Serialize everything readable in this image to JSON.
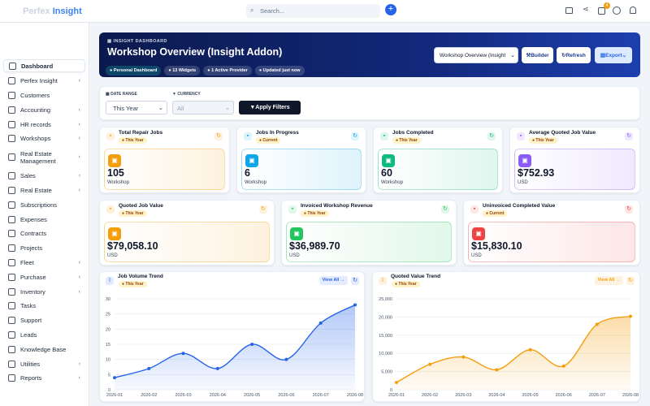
{
  "topbar": {
    "brand_1": "Perfex",
    "brand_2": "Insight",
    "search": "Search...",
    "badge": "4"
  },
  "sidebar": {
    "items": [
      "Dashboard",
      "Perfex Insight",
      "Customers",
      "Accounting",
      "HR records",
      "Workshops",
      "Real Estate Management",
      "Sales",
      "Real Estate",
      "Subscriptions",
      "Expenses",
      "Contracts",
      "Projects",
      "Fleet",
      "Purchase",
      "Inventory",
      "Tasks",
      "Support",
      "Leads",
      "Knowledge Base",
      "Utilities",
      "Reports"
    ]
  },
  "header": {
    "eyebrow": "INSIGHT DASHBOARD",
    "title": "Workshop Overview (Insight Addon)",
    "chips": [
      "Personal Dashboard",
      "13 Widgets",
      "1 Active Provider",
      "Updated just now"
    ],
    "select": "Workshop Overview (Insight",
    "buttons": [
      "Builder",
      "Refresh",
      "Export"
    ]
  },
  "filters": {
    "date_label": "DATE RANGE",
    "date_value": "This Year",
    "currency_label": "CURRENCY",
    "currency_value": "All",
    "apply": "Apply Filters"
  },
  "kpis": [
    {
      "title": "Total Repair Jobs",
      "tag": "This Year",
      "value": "105",
      "unit": "Workshop",
      "color": "#f59e0b"
    },
    {
      "title": "Jobs In Progress",
      "tag": "Current",
      "value": "6",
      "unit": "Workshop",
      "color": "#0ea5e9"
    },
    {
      "title": "Jobs Completed",
      "tag": "This Year",
      "value": "60",
      "unit": "Workshop",
      "color": "#10b981"
    },
    {
      "title": "Average Quoted Job Value",
      "tag": "This Year",
      "value": "$752.93",
      "unit": "USD",
      "color": "#8b5cf6"
    },
    {
      "title": "Quoted Job Value",
      "tag": "This Year",
      "value": "$79,058.10",
      "unit": "USD",
      "color": "#f59e0b"
    },
    {
      "title": "Invoiced Workshop Revenue",
      "tag": "This Year",
      "value": "$36,989.70",
      "unit": "USD",
      "color": "#22c55e"
    },
    {
      "title": "Uninvoiced Completed Value",
      "tag": "Current",
      "value": "$15,830.10",
      "unit": "USD",
      "color": "#ef4444"
    }
  ],
  "chart_data": [
    {
      "type": "line",
      "title": "Job Volume Trend",
      "tag": "This Year",
      "action": "View All →",
      "color": "#2563eb",
      "categories": [
        "2026-01",
        "2026-02",
        "2026-03",
        "2026-04",
        "2026-05",
        "2026-06",
        "2026-07",
        "2026-08"
      ],
      "values": [
        4,
        7,
        12,
        7,
        15,
        10,
        22,
        28
      ],
      "ylim": [
        0,
        30
      ],
      "yticks": [
        0,
        5,
        10,
        15,
        20,
        25,
        30
      ],
      "grid": true
    },
    {
      "type": "line",
      "title": "Quoted Value Trend",
      "tag": "This Year",
      "action": "View All →",
      "color": "#f59e0b",
      "categories": [
        "2026-01",
        "2026-02",
        "2026-03",
        "2026-04",
        "2026-05",
        "2026-06",
        "2026-07",
        "2026-08"
      ],
      "values": [
        2000,
        7000,
        9000,
        5500,
        11000,
        6500,
        18000,
        20200
      ],
      "ylim": [
        0,
        25000
      ],
      "yticks": [
        0,
        {
          "value": 5000,
          "label": "5,000"
        },
        {
          "value": 10000,
          "label": "10,000"
        },
        {
          "value": 15000,
          "label": "15,000"
        },
        {
          "value": 20000,
          "label": "20,000"
        },
        {
          "value": 25000,
          "label": "25,000"
        }
      ],
      "grid": true
    }
  ]
}
